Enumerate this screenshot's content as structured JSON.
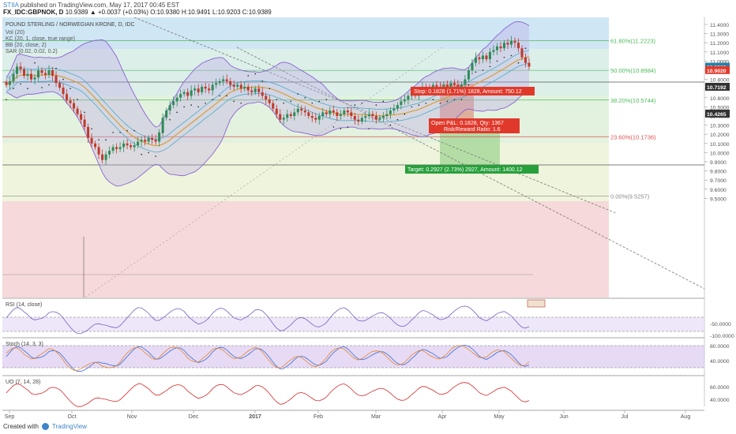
{
  "header": {
    "brand": "STIIA",
    "published": "published on TradingView.com, May 17, 2017 00:45 EST",
    "symbol": "FX_IDC:GBPNOK, D",
    "quote": "10.9389 ▲ +0.0037 (+0.03%) O:10.9380 H:10.9491 L:10.9203 C:10.9389"
  },
  "footer": {
    "created": "Created with",
    "brand": "TradingView"
  },
  "colors": {
    "up": "#2e8b57",
    "down": "#c0392b",
    "bb": "#8a63d2",
    "kc": "#39a8c8",
    "kc_mid": "#d99a2b",
    "rsi": "#7a5fc0",
    "stoch_k": "#3b6bd6",
    "stoch_d": "#e8862a",
    "uo": "#d6282c",
    "stop_box": "#e0392b",
    "target_box": "#27a03c",
    "fib_line": "#4dbc5a",
    "fib_618_text": "#4dbc5a",
    "fib_236_text": "#e05050"
  },
  "chart_data": {
    "type": "candlestick",
    "title": "POUND STERLING / NORWEGIAN KRONE, D, IDC",
    "legend": [
      "Vol (20)",
      "KC (20, 1, close, true range)",
      "BB (20, close, 2)",
      "SAR (0.02, 0.02, 0.2)"
    ],
    "y_ticks": [
      "11.4000",
      "11.3000",
      "11.2000",
      "11.1000",
      "11.0000",
      "10.9000",
      "10.8000",
      "10.7000",
      "10.6000",
      "10.5000",
      "10.4000",
      "10.3000",
      "10.2000",
      "10.1000",
      "10.0000",
      "9.9000",
      "9.8000",
      "9.7000",
      "9.6000",
      "9.5000"
    ],
    "ylim": [
      9.5,
      11.45
    ],
    "x_ticks": [
      "Sep",
      "Oct",
      "Nov",
      "Dec",
      "2017",
      "Feb",
      "Mar",
      "Apr",
      "May",
      "Jun",
      "Jul",
      "Aug"
    ],
    "fib_levels": [
      {
        "label": "61.80%(11.2223)",
        "value": 11.2223
      },
      {
        "label": "50.00%(10.8984)",
        "value": 10.8984
      },
      {
        "label": "38.20%(10.5744)",
        "value": 10.5744
      },
      {
        "label": "23.60%(10.1736)",
        "value": 10.1736
      },
      {
        "label": "0.00%(9.5257)",
        "value": 9.5257
      }
    ],
    "price_labels": [
      {
        "text": "10.9389",
        "value": 10.9389
      },
      {
        "text": "10.9020",
        "value": 10.902
      },
      {
        "text": "10.7192",
        "value": 10.7192
      },
      {
        "text": "10.4265",
        "value": 10.4265
      }
    ],
    "position": {
      "stop": "Stop: 0.1828 (1.71%) 1828, Amount: 750.12",
      "open": "Open P&L: 0.1828, Qty: 1367",
      "rr": "Risk/Reward Ratio: 1.6",
      "target": "Target: 0.2927 (2.73%) 2927, Amount: 1400.12"
    },
    "closes": [
      10.74,
      10.78,
      10.86,
      10.94,
      10.91,
      10.84,
      10.86,
      10.8,
      10.82,
      10.9,
      10.87,
      10.85,
      10.9,
      10.84,
      10.76,
      10.71,
      10.64,
      10.57,
      10.54,
      10.48,
      10.42,
      10.36,
      10.28,
      10.16,
      10.1,
      10.06,
      9.98,
      9.92,
      9.98,
      10.02,
      10.06,
      10.04,
      10.06,
      10.1,
      10.08,
      10.06,
      10.08,
      10.12,
      10.14,
      10.12,
      10.16,
      10.14,
      10.12,
      10.22,
      10.38,
      10.46,
      10.52,
      10.56,
      10.6,
      10.64,
      10.66,
      10.62,
      10.68,
      10.7,
      10.66,
      10.72,
      10.7,
      10.68,
      10.74,
      10.76,
      10.78,
      10.8,
      10.78,
      10.74,
      10.72,
      10.74,
      10.7,
      10.72,
      10.68,
      10.66,
      10.7,
      10.66,
      10.62,
      10.58,
      10.54,
      10.48,
      10.42,
      10.36,
      10.38,
      10.42,
      10.4,
      10.44,
      10.48,
      10.46,
      10.44,
      10.4,
      10.38,
      10.36,
      10.4,
      10.44,
      10.42,
      10.46,
      10.44,
      10.4,
      10.42,
      10.46,
      10.44,
      10.4,
      10.36,
      10.34,
      10.38,
      10.4,
      10.42,
      10.4,
      10.36,
      10.38,
      10.4,
      10.42,
      10.46,
      10.48,
      10.52,
      10.56,
      10.58,
      10.62,
      10.66,
      10.62,
      10.68,
      10.72,
      10.7,
      10.68,
      10.74,
      10.72,
      10.7,
      10.74,
      10.72,
      10.76,
      10.74,
      10.72,
      10.74,
      10.8,
      10.9,
      10.98,
      11.04,
      11.02,
      11.06,
      11.02,
      11.1,
      11.12,
      11.16,
      11.14,
      11.2,
      11.18,
      11.22,
      11.2,
      11.14,
      11.04,
      10.98,
      10.94
    ],
    "rsi": {
      "label": "RSI (14, close)",
      "ticks": [
        "-50.0000",
        "-100.0000"
      ]
    },
    "stoch": {
      "label": "Stoch (14, 3, 3)",
      "ticks": [
        "80.0000",
        "40.0000"
      ]
    },
    "uo": {
      "label": "UO (7, 14, 28)",
      "ticks": [
        "60.0000",
        "40.0000"
      ]
    }
  }
}
